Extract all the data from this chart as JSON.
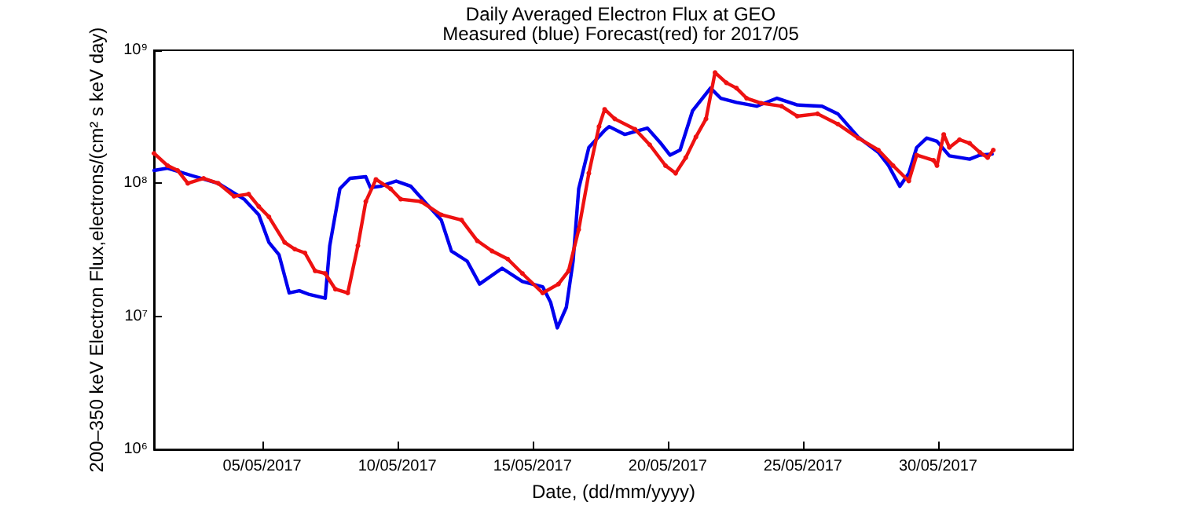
{
  "chart_data": {
    "type": "line",
    "title": "Daily Averaged Electron Flux at GEO",
    "subtitle": "Measured (blue) Forecast(red) for 2017/05",
    "xlabel": "Date, (dd/mm/yyyy)",
    "ylabel": "200–350 keV Electron Flux,electrons/(cm² s keV day)",
    "log": "y",
    "grid": false,
    "xlim": [
      "2017-05-01",
      "2017-06-04"
    ],
    "xticks": [
      {
        "value": "2017-05-05",
        "label": "05/05/2017"
      },
      {
        "value": "2017-05-10",
        "label": "10/05/2017"
      },
      {
        "value": "2017-05-15",
        "label": "15/05/2017"
      },
      {
        "value": "2017-05-20",
        "label": "20/05/2017"
      },
      {
        "value": "2017-05-25",
        "label": "25/05/2017"
      },
      {
        "value": "2017-05-30",
        "label": "30/05/2017"
      }
    ],
    "ylim": [
      1000000,
      1000000000
    ],
    "yticks": [
      {
        "value": 1000000,
        "label": "10⁶"
      },
      {
        "value": 10000000,
        "label": "10⁷"
      },
      {
        "value": 100000000,
        "label": "10⁸"
      },
      {
        "value": 1000000000,
        "label": "10⁹"
      }
    ],
    "series": [
      {
        "color": "#0000ee",
        "marker": "none",
        "x": [
          "2017-05-01T00:00",
          "2017-05-01T12:00",
          "2017-05-02T10:00",
          "2017-05-03T09:00",
          "2017-05-04T08:00",
          "2017-05-04T21:00",
          "2017-05-05T06:00",
          "2017-05-05T15:00",
          "2017-05-06T00:00",
          "2017-05-06T09:00",
          "2017-05-06T18:00",
          "2017-05-07T08:00",
          "2017-05-07T12:00",
          "2017-05-07T21:00",
          "2017-05-08T06:00",
          "2017-05-08T20:00",
          "2017-05-09T00:00",
          "2017-05-09T09:00",
          "2017-05-09T23:00",
          "2017-05-10T12:00",
          "2017-05-11T02:00",
          "2017-05-11T15:00",
          "2017-05-12T00:00",
          "2017-05-12T14:00",
          "2017-05-13T01:00",
          "2017-05-13T21:00",
          "2017-05-14T15:00",
          "2017-05-15T09:00",
          "2017-05-15T16:00",
          "2017-05-15T22:00",
          "2017-05-16T06:00",
          "2017-05-16T12:00",
          "2017-05-16T17:00",
          "2017-05-17T02:00",
          "2017-05-17T16:00",
          "2017-05-17T20:00",
          "2017-05-18T10:00",
          "2017-05-19T06:00",
          "2017-05-19T17:00",
          "2017-05-20T02:00",
          "2017-05-20T11:00",
          "2017-05-20T22:00",
          "2017-05-21T14:00",
          "2017-05-21T23:00",
          "2017-05-22T13:00",
          "2017-05-23T07:00",
          "2017-05-24T01:00",
          "2017-05-24T19:00",
          "2017-05-25T17:00",
          "2017-05-26T07:00",
          "2017-05-27T01:00",
          "2017-05-27T19:00",
          "2017-05-28T04:00",
          "2017-05-28T14:00",
          "2017-05-28T22:00",
          "2017-05-29T05:00",
          "2017-05-29T14:00",
          "2017-05-29T23:00",
          "2017-05-30T10:00",
          "2017-05-31T04:00",
          "2017-05-31T13:00",
          "2017-06-01T00:00"
        ],
        "values": [
          125000000,
          130000000,
          114000000,
          100000000,
          76000000,
          58000000,
          36000000,
          29000000,
          15000000,
          15600000,
          14600000,
          13700000,
          34000000,
          91000000,
          109000000,
          112000000,
          93000000,
          95000000,
          104000000,
          95000000,
          70000000,
          53000000,
          31000000,
          26000000,
          17500000,
          23000000,
          18300000,
          16700000,
          12800000,
          8200000,
          11700000,
          26000000,
          91000000,
          186000000,
          250000000,
          267000000,
          233000000,
          260000000,
          204000000,
          163000000,
          178000000,
          350000000,
          520000000,
          436000000,
          406000000,
          380000000,
          436000000,
          388000000,
          380000000,
          333000000,
          223000000,
          171000000,
          136000000,
          95000000,
          119000000,
          186000000,
          219000000,
          207000000,
          161000000,
          152000000,
          163000000,
          166000000
        ]
      },
      {
        "color": "#ee1111",
        "marker": "circle",
        "x": [
          "2017-05-01T00:00",
          "2017-05-01T12:00",
          "2017-05-01T21:00",
          "2017-05-02T06:00",
          "2017-05-02T20:00",
          "2017-05-03T09:00",
          "2017-05-03T23:00",
          "2017-05-04T12:00",
          "2017-05-04T21:00",
          "2017-05-05T06:00",
          "2017-05-05T20:00",
          "2017-05-06T05:00",
          "2017-05-06T14:00",
          "2017-05-06T23:00",
          "2017-05-07T08:00",
          "2017-05-07T17:00",
          "2017-05-08T04:00",
          "2017-05-08T13:00",
          "2017-05-08T20:00",
          "2017-05-09T05:00",
          "2017-05-09T18:00",
          "2017-05-10T03:00",
          "2017-05-10T21:00",
          "2017-05-11T15:00",
          "2017-05-12T09:00",
          "2017-05-12T23:00",
          "2017-05-13T12:00",
          "2017-05-14T02:00",
          "2017-05-14T15:00",
          "2017-05-15T09:00",
          "2017-05-15T23:00",
          "2017-05-16T08:00",
          "2017-05-16T17:00",
          "2017-05-17T02:00",
          "2017-05-17T11:00",
          "2017-05-17T16:00",
          "2017-05-18T01:00",
          "2017-05-18T19:00",
          "2017-05-19T08:00",
          "2017-05-19T22:00",
          "2017-05-20T07:00",
          "2017-05-20T16:00",
          "2017-05-21T01:00",
          "2017-05-21T10:00",
          "2017-05-21T18:00",
          "2017-05-22T04:00",
          "2017-05-22T13:00",
          "2017-05-22T22:00",
          "2017-05-23T11:00",
          "2017-05-24T05:00",
          "2017-05-24T19:00",
          "2017-05-25T13:00",
          "2017-05-26T07:00",
          "2017-05-27T01:00",
          "2017-05-27T19:00",
          "2017-05-28T08:00",
          "2017-05-28T22:00",
          "2017-05-29T05:00",
          "2017-05-29T20:00",
          "2017-05-29T23:00",
          "2017-05-30T05:00",
          "2017-05-30T10:00",
          "2017-05-30T19:00",
          "2017-05-31T04:00",
          "2017-05-31T13:00",
          "2017-05-31T20:00",
          "2017-06-01T01:00"
        ],
        "values": [
          168000000,
          136000000,
          125000000,
          100000000,
          109000000,
          100000000,
          80000000,
          83000000,
          67000000,
          56000000,
          36000000,
          32000000,
          30000000,
          22000000,
          21000000,
          16000000,
          15000000,
          34000000,
          73000000,
          107000000,
          91000000,
          76000000,
          73000000,
          58000000,
          53000000,
          37000000,
          31000000,
          27000000,
          21000000,
          15000000,
          17500000,
          22000000,
          45000000,
          119000000,
          267000000,
          360000000,
          305000000,
          255000000,
          195000000,
          136000000,
          119000000,
          156000000,
          223000000,
          305000000,
          680000000,
          570000000,
          520000000,
          436000000,
          400000000,
          380000000,
          320000000,
          333000000,
          279000000,
          219000000,
          178000000,
          136000000,
          104000000,
          163000000,
          149000000,
          136000000,
          233000000,
          186000000,
          213000000,
          200000000,
          171000000,
          156000000,
          178000000
        ]
      }
    ]
  }
}
